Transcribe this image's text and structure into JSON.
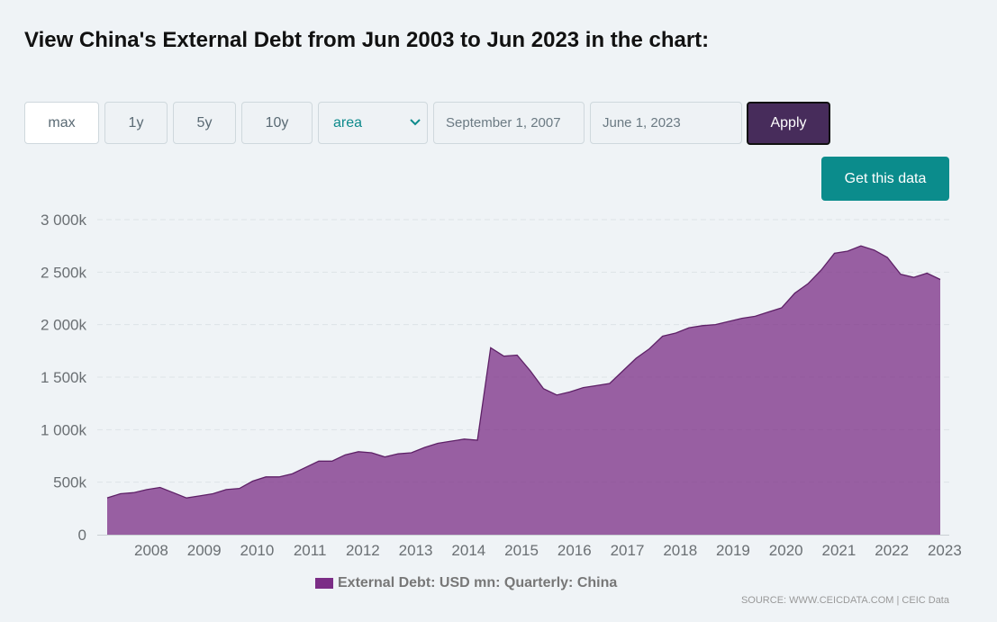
{
  "title": "View China's External Debt from Jun 2003 to Jun 2023 in the chart:",
  "controls": {
    "range_buttons": [
      "max",
      "1y",
      "5y",
      "10y"
    ],
    "chart_type": "area",
    "start_date": "September 1, 2007",
    "end_date": "June 1, 2023",
    "apply_label": "Apply",
    "get_data_label": "Get this data"
  },
  "icons": {
    "select": "chevron-down-icon"
  },
  "colors": {
    "area_fill": "#7b2d86",
    "apply_bg": "#472c5b",
    "get_data_bg": "#0b8c8c",
    "select_text": "#0e8a8c"
  },
  "legend_label": "External Debt: USD mn: Quarterly: China",
  "source": "SOURCE: WWW.CEICDATA.COM | CEIC Data",
  "chart_data": {
    "type": "area",
    "x": [
      "2007-09",
      "2007-12",
      "2008-03",
      "2008-06",
      "2008-09",
      "2008-12",
      "2009-03",
      "2009-06",
      "2009-09",
      "2009-12",
      "2010-03",
      "2010-06",
      "2010-09",
      "2010-12",
      "2011-03",
      "2011-06",
      "2011-09",
      "2011-12",
      "2012-03",
      "2012-06",
      "2012-09",
      "2012-12",
      "2013-03",
      "2013-06",
      "2013-09",
      "2013-12",
      "2014-03",
      "2014-06",
      "2014-09",
      "2014-12",
      "2015-03",
      "2015-06",
      "2015-09",
      "2015-12",
      "2016-03",
      "2016-06",
      "2016-09",
      "2016-12",
      "2017-03",
      "2017-06",
      "2017-09",
      "2017-12",
      "2018-03",
      "2018-06",
      "2018-09",
      "2018-12",
      "2019-03",
      "2019-06",
      "2019-09",
      "2019-12",
      "2020-03",
      "2020-06",
      "2020-09",
      "2020-12",
      "2021-03",
      "2021-06",
      "2021-09",
      "2021-12",
      "2022-03",
      "2022-06",
      "2022-09",
      "2022-12",
      "2023-03",
      "2023-06"
    ],
    "series": [
      {
        "name": "External Debt: USD mn: Quarterly: China",
        "values": [
          350000,
          390000,
          400000,
          430000,
          450000,
          400000,
          350000,
          370000,
          390000,
          430000,
          440000,
          510000,
          550000,
          550000,
          580000,
          640000,
          700000,
          700000,
          760000,
          790000,
          780000,
          740000,
          770000,
          780000,
          830000,
          870000,
          890000,
          910000,
          900000,
          1780000,
          1700000,
          1710000,
          1560000,
          1390000,
          1330000,
          1360000,
          1400000,
          1420000,
          1440000,
          1560000,
          1680000,
          1770000,
          1890000,
          1920000,
          1970000,
          1990000,
          2000000,
          2030000,
          2060000,
          2080000,
          2120000,
          2160000,
          2300000,
          2390000,
          2520000,
          2680000,
          2700000,
          2750000,
          2710000,
          2640000,
          2480000,
          2450000,
          2490000,
          2430000
        ]
      }
    ],
    "xticks": [
      "2008",
      "2009",
      "2010",
      "2011",
      "2012",
      "2013",
      "2014",
      "2015",
      "2016",
      "2017",
      "2018",
      "2019",
      "2020",
      "2021",
      "2022",
      "2023"
    ],
    "yticks": [
      "0",
      "500k",
      "1 000k",
      "1 500k",
      "2 000k",
      "2 500k",
      "3 000k"
    ],
    "ylim": [
      0,
      3000000
    ],
    "grid": true,
    "legend_position": "bottom"
  }
}
